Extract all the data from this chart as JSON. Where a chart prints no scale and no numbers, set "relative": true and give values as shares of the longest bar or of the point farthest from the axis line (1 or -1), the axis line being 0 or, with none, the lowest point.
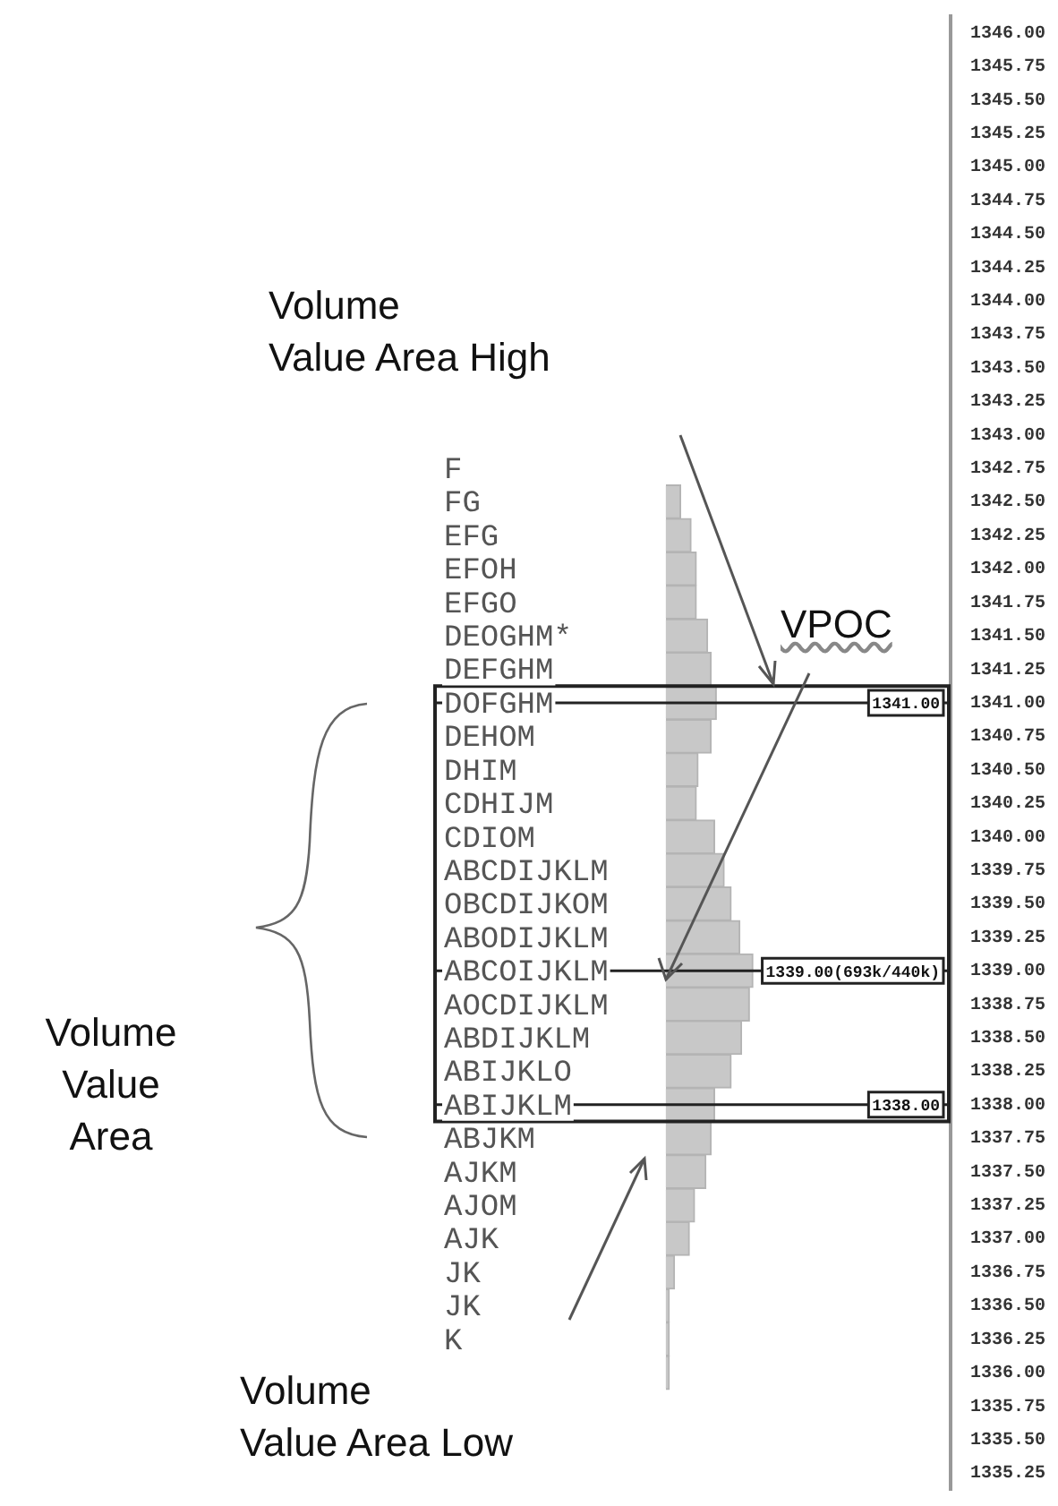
{
  "chart_data": {
    "type": "bar",
    "orientation": "horizontal",
    "relative": true,
    "color": "#c8c8c8",
    "categories": [
      "1346.00",
      "1345.75",
      "1345.50",
      "1345.25",
      "1345.00",
      "1344.75",
      "1344.50",
      "1344.25",
      "1344.00",
      "1343.75",
      "1343.50",
      "1343.25",
      "1343.00",
      "1342.75",
      "1342.50",
      "1342.25",
      "1342.00",
      "1341.75",
      "1341.50",
      "1341.25",
      "1341.00",
      "1340.75",
      "1340.50",
      "1340.25",
      "1340.00",
      "1339.75",
      "1339.50",
      "1339.25",
      "1339.00",
      "1338.75",
      "1338.50",
      "1338.25",
      "1338.00",
      "1337.75",
      "1337.50",
      "1337.25",
      "1337.00",
      "1336.75",
      "1336.50",
      "1336.25",
      "1336.00",
      "1335.75",
      "1335.50",
      "1335.25"
    ],
    "values": [
      null,
      null,
      null,
      null,
      null,
      null,
      null,
      null,
      null,
      null,
      null,
      null,
      null,
      null,
      0.17,
      0.29,
      0.35,
      0.35,
      0.48,
      0.52,
      0.58,
      0.52,
      0.37,
      0.35,
      0.56,
      0.67,
      0.75,
      0.85,
      1,
      0.96,
      0.87,
      0.75,
      0.56,
      0.52,
      0.46,
      0.33,
      0.27,
      0.1,
      0.04,
      0.04,
      0.04,
      null,
      null,
      null
    ],
    "ref_lines": [
      {
        "axis": "y",
        "value": "1341.00",
        "label": "1341.00"
      },
      {
        "axis": "y",
        "value": "1339.00",
        "label": "1339.00(693k/440k)"
      },
      {
        "axis": "y",
        "value": "1338.00",
        "label": "1338.00"
      }
    ],
    "annotations": [
      "Volume Value Area High",
      "VPOC",
      "Volume Value Area",
      "Volume Value Area Low",
      "F",
      "FG",
      "EFG",
      "EFOH",
      "EFGO",
      "DEOGHM*",
      "DEFGHM",
      "DOFGHM",
      "DEHOM",
      "DHIM",
      "CDHIJM",
      "CDIOM",
      "ABCDIJKLM",
      "OBCDIJKOM",
      "ABODIJKLM",
      "ABCOIJKLM",
      "AOCDIJKLM",
      "ABDIJKLM",
      "ABIJKLO",
      "ABIJKLM",
      "ABJKM",
      "AJKM",
      "AJOM",
      "AJK",
      "JK",
      "JK",
      "K"
    ]
  }
}
